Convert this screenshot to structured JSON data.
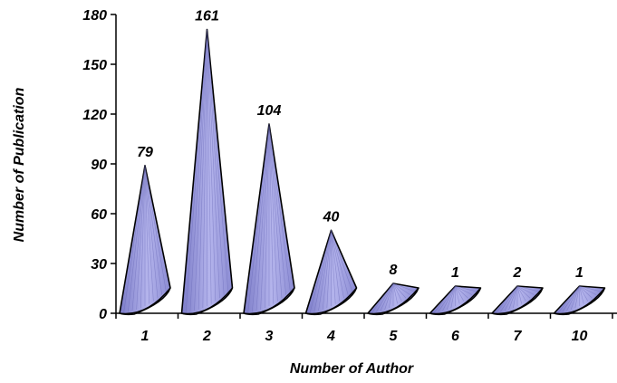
{
  "chart_data": {
    "type": "bar",
    "categories": [
      "1",
      "2",
      "3",
      "4",
      "5",
      "6",
      "7",
      "10"
    ],
    "values": [
      79,
      161,
      104,
      40,
      8,
      1,
      2,
      1
    ],
    "xlabel": "Number of Author",
    "ylabel": "Number of Publication",
    "ylim": [
      0,
      180
    ],
    "yticks": [
      0,
      30,
      60,
      90,
      120,
      150,
      180
    ],
    "grid": false,
    "bar_color": "#9a9ad6",
    "bar_shade": "#6a6ab8"
  }
}
